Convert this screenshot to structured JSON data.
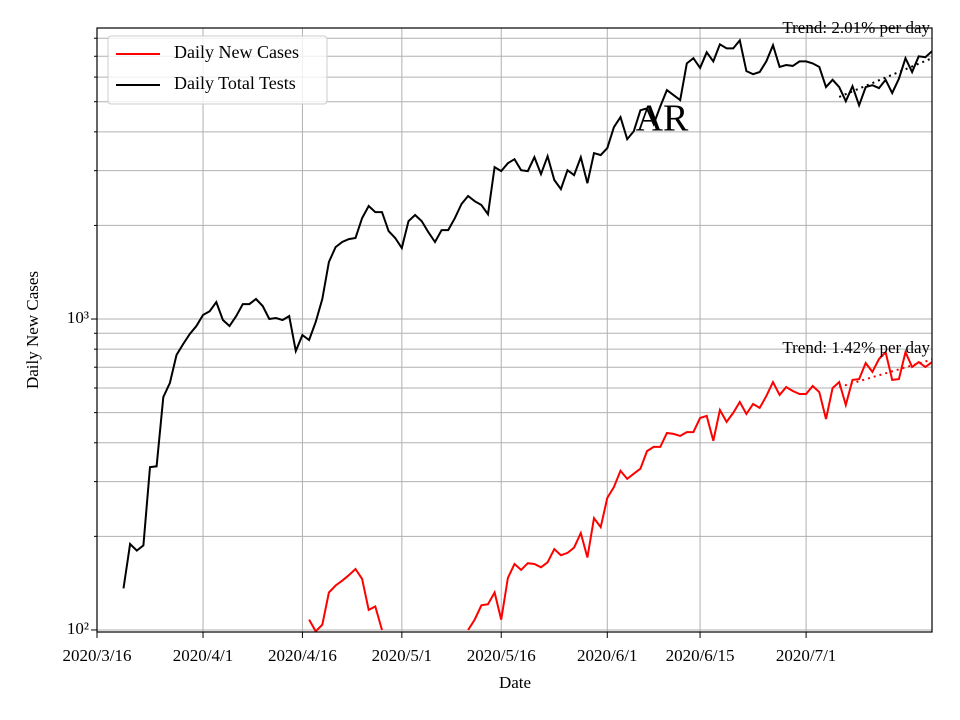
{
  "chart_data": {
    "type": "line",
    "xlabel": "Date",
    "ylabel": "Daily New Cases",
    "annotation": "AR",
    "log_y": true,
    "grid": true,
    "legend": "upper left",
    "xlim": [
      "2020/3/16",
      "2020/7/20"
    ],
    "xticks": [
      "2020/3/16",
      "2020/4/1",
      "2020/4/16",
      "2020/5/1",
      "2020/5/16",
      "2020/6/1",
      "2020/6/15",
      "2020/7/1"
    ],
    "ylim": [
      98.5,
      8630
    ],
    "yticks": [
      {
        "value": 100,
        "label": "10²"
      },
      {
        "value": 1000,
        "label": "10³"
      }
    ],
    "yminorticks": [
      200,
      300,
      400,
      500,
      600,
      700,
      800,
      900,
      2000,
      3000,
      4000,
      5000,
      6000,
      7000,
      8000
    ],
    "x": [
      "2020/3/20",
      "2020/3/21",
      "2020/3/22",
      "2020/3/23",
      "2020/3/24",
      "2020/3/25",
      "2020/3/26",
      "2020/3/27",
      "2020/3/28",
      "2020/3/29",
      "2020/3/30",
      "2020/3/31",
      "2020/4/1",
      "2020/4/2",
      "2020/4/3",
      "2020/4/4",
      "2020/4/5",
      "2020/4/6",
      "2020/4/7",
      "2020/4/8",
      "2020/4/9",
      "2020/4/10",
      "2020/4/11",
      "2020/4/12",
      "2020/4/13",
      "2020/4/14",
      "2020/4/15",
      "2020/4/16",
      "2020/4/17",
      "2020/4/18",
      "2020/4/19",
      "2020/4/20",
      "2020/4/21",
      "2020/4/22",
      "2020/4/23",
      "2020/4/24",
      "2020/4/25",
      "2020/4/26",
      "2020/4/27",
      "2020/4/28",
      "2020/4/29",
      "2020/4/30",
      "2020/5/1",
      "2020/5/2",
      "2020/5/3",
      "2020/5/4",
      "2020/5/5",
      "2020/5/6",
      "2020/5/7",
      "2020/5/8",
      "2020/5/9",
      "2020/5/10",
      "2020/5/11",
      "2020/5/12",
      "2020/5/13",
      "2020/5/14",
      "2020/5/15",
      "2020/5/16",
      "2020/5/17",
      "2020/5/18",
      "2020/5/19",
      "2020/5/20",
      "2020/5/21",
      "2020/5/22",
      "2020/5/23",
      "2020/5/24",
      "2020/5/25",
      "2020/5/26",
      "2020/5/27",
      "2020/5/28",
      "2020/5/29",
      "2020/5/30",
      "2020/5/31",
      "2020/6/1",
      "2020/6/2",
      "2020/6/3",
      "2020/6/4",
      "2020/6/5",
      "2020/6/6",
      "2020/6/7",
      "2020/6/8",
      "2020/6/9",
      "2020/6/10",
      "2020/6/11",
      "2020/6/12",
      "2020/6/13",
      "2020/6/14",
      "2020/6/15",
      "2020/6/16",
      "2020/6/17",
      "2020/6/18",
      "2020/6/19",
      "2020/6/20",
      "2020/6/21",
      "2020/6/22",
      "2020/6/23",
      "2020/6/24",
      "2020/6/25",
      "2020/6/26",
      "2020/6/27",
      "2020/6/28",
      "2020/6/29",
      "2020/6/30",
      "2020/7/1",
      "2020/7/2",
      "2020/7/3",
      "2020/7/4",
      "2020/7/5",
      "2020/7/6",
      "2020/7/7",
      "2020/7/8",
      "2020/7/9",
      "2020/7/10",
      "2020/7/11",
      "2020/7/12",
      "2020/7/13",
      "2020/7/14",
      "2020/7/15",
      "2020/7/16",
      "2020/7/17",
      "2020/7/18",
      "2020/7/19",
      "2020/7/20"
    ],
    "series": [
      {
        "name": "Daily New Cases",
        "color": "#ff0000",
        "values": [
          null,
          null,
          null,
          null,
          null,
          null,
          null,
          null,
          null,
          null,
          null,
          null,
          null,
          null,
          null,
          null,
          null,
          null,
          null,
          null,
          null,
          null,
          null,
          null,
          null,
          null,
          null,
          null,
          108,
          99,
          104,
          132,
          139,
          144,
          150,
          157,
          146,
          116,
          119,
          100,
          null,
          null,
          null,
          null,
          null,
          null,
          null,
          null,
          null,
          null,
          null,
          null,
          100,
          108,
          120,
          121,
          132,
          108,
          147,
          163,
          156,
          164,
          163,
          159,
          165,
          182,
          174,
          177,
          184,
          205,
          171,
          229,
          214,
          266,
          288,
          325,
          306,
          318,
          330,
          376,
          388,
          388,
          430,
          427,
          421,
          433,
          433,
          481,
          488,
          406,
          510,
          467,
          499,
          541,
          495,
          533,
          518,
          565,
          627,
          570,
          604,
          587,
          574,
          574,
          609,
          582,
          477,
          600,
          627,
          529,
          637,
          641,
          722,
          676,
          744,
          783,
          637,
          641,
          783,
          701,
          727,
          701,
          727
        ]
      },
      {
        "name": "Daily Total Tests",
        "color": "#000000",
        "values": [
          136,
          189,
          180,
          187,
          334,
          336,
          561,
          623,
          766,
          831,
          895,
          950,
          1030,
          1060,
          1134,
          993,
          950,
          1022,
          1117,
          1117,
          1160,
          1101,
          1000,
          1008,
          993,
          1022,
          789,
          888,
          856,
          978,
          1160,
          1525,
          1704,
          1769,
          1808,
          1822,
          2112,
          2309,
          2207,
          2207,
          1918,
          1822,
          1692,
          2065,
          2160,
          2065,
          1904,
          1769,
          1932,
          1932,
          2112,
          2344,
          2487,
          2394,
          2326,
          2173,
          3080,
          2990,
          3172,
          3266,
          3010,
          2990,
          3315,
          2924,
          3340,
          2800,
          2618,
          3010,
          2904,
          3315,
          2735,
          3418,
          3366,
          3545,
          4140,
          4460,
          3787,
          4020,
          4690,
          4760,
          4235,
          4830,
          5450,
          5250,
          5060,
          6640,
          6900,
          6420,
          7210,
          6740,
          7650,
          7420,
          7420,
          7870,
          6270,
          6130,
          6230,
          6740,
          7600,
          6470,
          6560,
          6520,
          6740,
          6740,
          6640,
          6470,
          5570,
          5880,
          5570,
          5020,
          5610,
          4870,
          5570,
          5650,
          5530,
          5880,
          5330,
          5930,
          6900,
          6230,
          7000,
          6950,
          7270
        ]
      }
    ],
    "trend_lines": [
      {
        "label": "Trend: 2.01% per day",
        "color": "#000000",
        "x": [
          "2020/7/6",
          "2020/7/20"
        ],
        "values": [
          5180,
          6900
        ]
      },
      {
        "label": "Trend: 1.42% per day",
        "color": "#ff0000",
        "x": [
          "2020/7/6",
          "2020/7/20"
        ],
        "values": [
          604,
          741
        ]
      }
    ]
  }
}
